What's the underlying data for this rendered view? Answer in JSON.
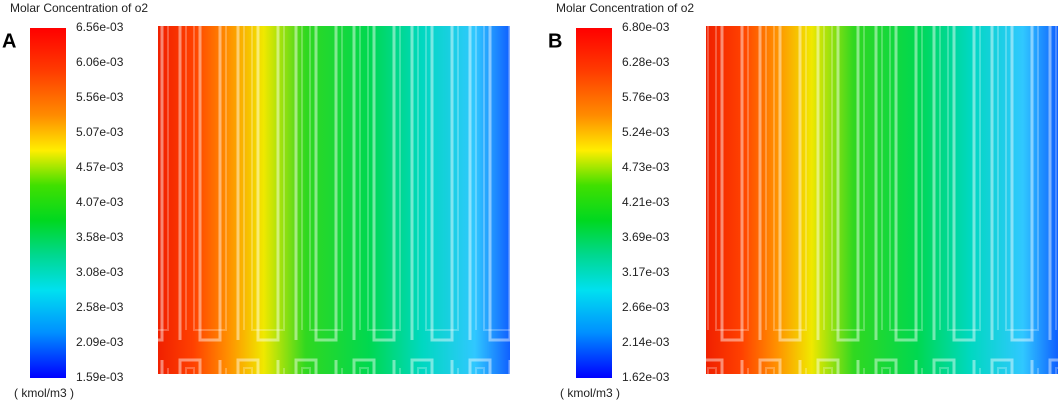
{
  "panels": [
    {
      "letter": "A",
      "title": "Molar Concentration of o2",
      "ticks": [
        "6.56e-03",
        "6.06e-03",
        "5.56e-03",
        "5.07e-03",
        "4.57e-03",
        "4.07e-03",
        "3.58e-03",
        "3.08e-03",
        "2.58e-03",
        "2.09e-03",
        "1.59e-03"
      ],
      "unit": "( kmol/m3 )"
    },
    {
      "letter": "B",
      "title": "Molar Concentration of o2",
      "ticks": [
        "6.80e-03",
        "6.28e-03",
        "5.76e-03",
        "5.24e-03",
        "4.73e-03",
        "4.21e-03",
        "3.69e-03",
        "3.17e-03",
        "2.66e-03",
        "2.14e-03",
        "1.62e-03"
      ],
      "unit": "( kmol/m3 )"
    }
  ]
}
